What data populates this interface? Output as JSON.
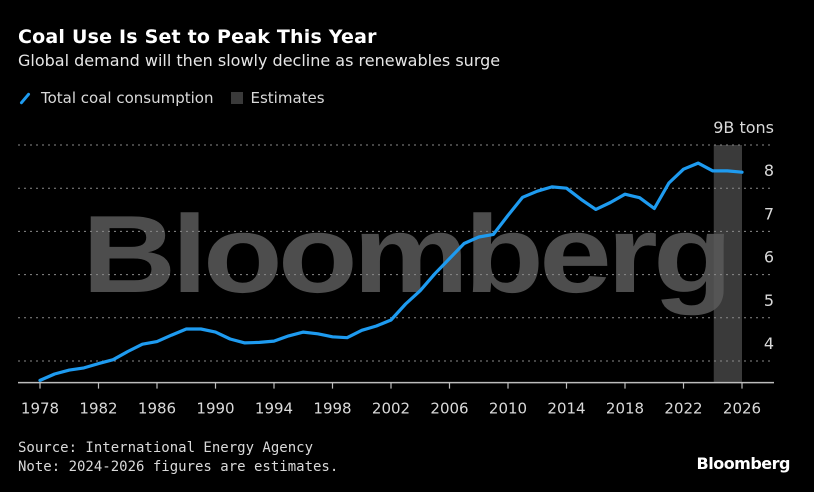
{
  "title": "Coal Use Is Set to Peak This Year",
  "subtitle": "Global demand will then slowly decline as renewables surge",
  "legend": {
    "series_label": "Total coal consumption",
    "estimates_label": "Estimates"
  },
  "watermark": "Bloomberg",
  "footer": {
    "source": "Source: International Energy Agency",
    "note": "Note: 2024-2026 figures are estimates.",
    "logo": "Bloomberg"
  },
  "colors": {
    "line": "#1e9bf0",
    "estimates_band": "#3a3a3a",
    "background": "#000000"
  },
  "chart_data": {
    "type": "line",
    "title": "Coal Use Is Set to Peak This Year",
    "ylabel": "9B tons",
    "xlim": [
      1977,
      2028
    ],
    "ylim": [
      3.5,
      9
    ],
    "y_ticks": [
      {
        "value": 9,
        "label": "9B tons"
      },
      {
        "value": 8,
        "label": "8"
      },
      {
        "value": 7,
        "label": "7"
      },
      {
        "value": 6,
        "label": "6"
      },
      {
        "value": 5,
        "label": "5"
      },
      {
        "value": 4,
        "label": "4"
      }
    ],
    "x_ticks": [
      "1978",
      "1982",
      "1986",
      "1990",
      "1994",
      "1998",
      "2002",
      "2006",
      "2010",
      "2014",
      "2018",
      "2022",
      "2026"
    ],
    "grid": true,
    "legend_position": "top-left",
    "estimates_range": [
      2024,
      2026
    ],
    "series": [
      {
        "name": "Total coal consumption",
        "x": [
          1978,
          1979,
          1980,
          1981,
          1982,
          1983,
          1984,
          1985,
          1986,
          1987,
          1988,
          1989,
          1990,
          1991,
          1992,
          1993,
          1994,
          1995,
          1996,
          1997,
          1998,
          1999,
          2000,
          2001,
          2002,
          2003,
          2004,
          2005,
          2006,
          2007,
          2008,
          2009,
          2010,
          2011,
          2012,
          2013,
          2014,
          2015,
          2016,
          2017,
          2018,
          2019,
          2020,
          2021,
          2022,
          2023,
          2024,
          2025,
          2026
        ],
        "y": [
          3.55,
          3.7,
          3.79,
          3.84,
          3.94,
          4.03,
          4.22,
          4.39,
          4.45,
          4.6,
          4.74,
          4.74,
          4.67,
          4.51,
          4.42,
          4.43,
          4.46,
          4.58,
          4.67,
          4.63,
          4.56,
          4.54,
          4.71,
          4.81,
          4.95,
          5.32,
          5.63,
          6.02,
          6.37,
          6.72,
          6.87,
          6.93,
          7.37,
          7.79,
          7.93,
          8.03,
          8.0,
          7.74,
          7.51,
          7.67,
          7.86,
          7.78,
          7.53,
          8.12,
          8.44,
          8.58,
          8.4,
          8.4,
          8.37
        ]
      }
    ]
  }
}
